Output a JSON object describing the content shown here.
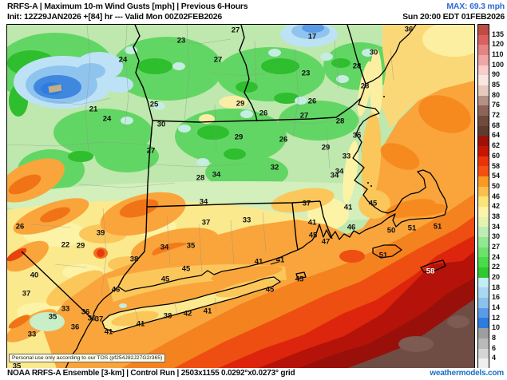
{
  "header": {
    "product": "RRFS-A | Maximum 10-m Wind Gusts [mph] | Previous 6-Hours",
    "max": "MAX: 69.3 mph",
    "max_color": "#2e6bd8",
    "init": "Init: 12Z29JAN2026 +[84] hr --- Valid Mon 00Z02FEB2026",
    "valid": "Sun 20:00 EDT 01FEB2026"
  },
  "legend": {
    "unit": "mph",
    "labels": [
      "135",
      "120",
      "110",
      "100",
      "90",
      "85",
      "80",
      "76",
      "72",
      "68",
      "64",
      "62",
      "60",
      "58",
      "54",
      "50",
      "46",
      "42",
      "38",
      "34",
      "30",
      "27",
      "24",
      "22",
      "20",
      "18",
      "16",
      "14",
      "12",
      "10",
      "8",
      "6",
      "4"
    ],
    "colors": [
      "#be4b44",
      "#db6161",
      "#e48484",
      "#f0a6a5",
      "#faccca",
      "#f8e7e1",
      "#e8c9bd",
      "#b39187",
      "#8d6458",
      "#714a3e",
      "#5f3c30",
      "#9e1008",
      "#c61602",
      "#ea3407",
      "#f4500f",
      "#fa9a21",
      "#fbbf4d",
      "#fce577",
      "#fcf4a8",
      "#e3f4ae",
      "#bfedb5",
      "#93e893",
      "#6ce26c",
      "#49db49",
      "#2fc82f",
      "#c2edf3",
      "#a9d8f1",
      "#8cc1ec",
      "#5a9be8",
      "#2f7ce0",
      "#9e9e9e",
      "#b9b9b9",
      "#d5d5d5",
      "#efefef"
    ]
  },
  "map": {
    "tos": "Personal use only according to our TOS (pf254J82J27G2r365)",
    "station_color": "#101010",
    "stations": [
      [
        153,
        73,
        "24"
      ],
      [
        226,
        49,
        "23"
      ],
      [
        272,
        73,
        "27"
      ],
      [
        294,
        36,
        "27"
      ],
      [
        390,
        44,
        "17"
      ],
      [
        511,
        35,
        "36"
      ],
      [
        467,
        64,
        "30"
      ],
      [
        446,
        81,
        "28"
      ],
      [
        382,
        90,
        "23"
      ],
      [
        456,
        106,
        "28"
      ],
      [
        390,
        125,
        "26"
      ],
      [
        300,
        128,
        "29"
      ],
      [
        192,
        129,
        "25"
      ],
      [
        116,
        135,
        "21"
      ],
      [
        133,
        147,
        "24"
      ],
      [
        201,
        154,
        "30"
      ],
      [
        329,
        140,
        "26"
      ],
      [
        380,
        143,
        "27"
      ],
      [
        425,
        150,
        "28"
      ],
      [
        446,
        168,
        "35"
      ],
      [
        354,
        173,
        "26"
      ],
      [
        298,
        170,
        "29"
      ],
      [
        407,
        183,
        "29"
      ],
      [
        433,
        194,
        "33"
      ],
      [
        343,
        208,
        "32"
      ],
      [
        424,
        213,
        "34"
      ],
      [
        418,
        218,
        "34"
      ],
      [
        188,
        187,
        "27"
      ],
      [
        250,
        221,
        "28"
      ],
      [
        270,
        217,
        "34"
      ],
      [
        24,
        282,
        "26"
      ],
      [
        81,
        305,
        "22"
      ],
      [
        100,
        306,
        "29"
      ],
      [
        125,
        290,
        "39"
      ],
      [
        254,
        251,
        "34"
      ],
      [
        257,
        277,
        "37"
      ],
      [
        205,
        308,
        "34"
      ],
      [
        238,
        306,
        "35"
      ],
      [
        167,
        323,
        "38"
      ],
      [
        232,
        335,
        "45"
      ],
      [
        206,
        348,
        "45"
      ],
      [
        42,
        343,
        "40"
      ],
      [
        32,
        366,
        "37"
      ],
      [
        144,
        361,
        "46"
      ],
      [
        81,
        385,
        "33"
      ],
      [
        106,
        389,
        "36"
      ],
      [
        65,
        395,
        "35"
      ],
      [
        114,
        397,
        "36"
      ],
      [
        123,
        398,
        "37"
      ],
      [
        93,
        408,
        "36"
      ],
      [
        39,
        417,
        "33"
      ],
      [
        135,
        414,
        "41"
      ],
      [
        209,
        394,
        "38"
      ],
      [
        175,
        404,
        "41"
      ],
      [
        234,
        391,
        "42"
      ],
      [
        259,
        388,
        "41"
      ],
      [
        20,
        457,
        "35"
      ],
      [
        383,
        253,
        "37"
      ],
      [
        435,
        258,
        "41"
      ],
      [
        466,
        253,
        "45"
      ],
      [
        308,
        274,
        "33"
      ],
      [
        390,
        277,
        "41"
      ],
      [
        391,
        293,
        "45"
      ],
      [
        407,
        301,
        "47"
      ],
      [
        439,
        283,
        "46"
      ],
      [
        489,
        287,
        "50"
      ],
      [
        515,
        284,
        "51"
      ],
      [
        547,
        282,
        "51"
      ],
      [
        479,
        318,
        "51"
      ],
      [
        538,
        338,
        "58",
        "#ffffff"
      ],
      [
        323,
        326,
        "41"
      ],
      [
        350,
        324,
        "41"
      ],
      [
        374,
        348,
        "45"
      ],
      [
        337,
        361,
        "45"
      ]
    ]
  },
  "footer": {
    "left": "NOAA RRFS-A Ensemble [3-km] | Control Run | 2503x1155 0.0292°x0.0273° grid",
    "brand": "weathermodels.com",
    "brand_color": "#1a6fc4"
  }
}
